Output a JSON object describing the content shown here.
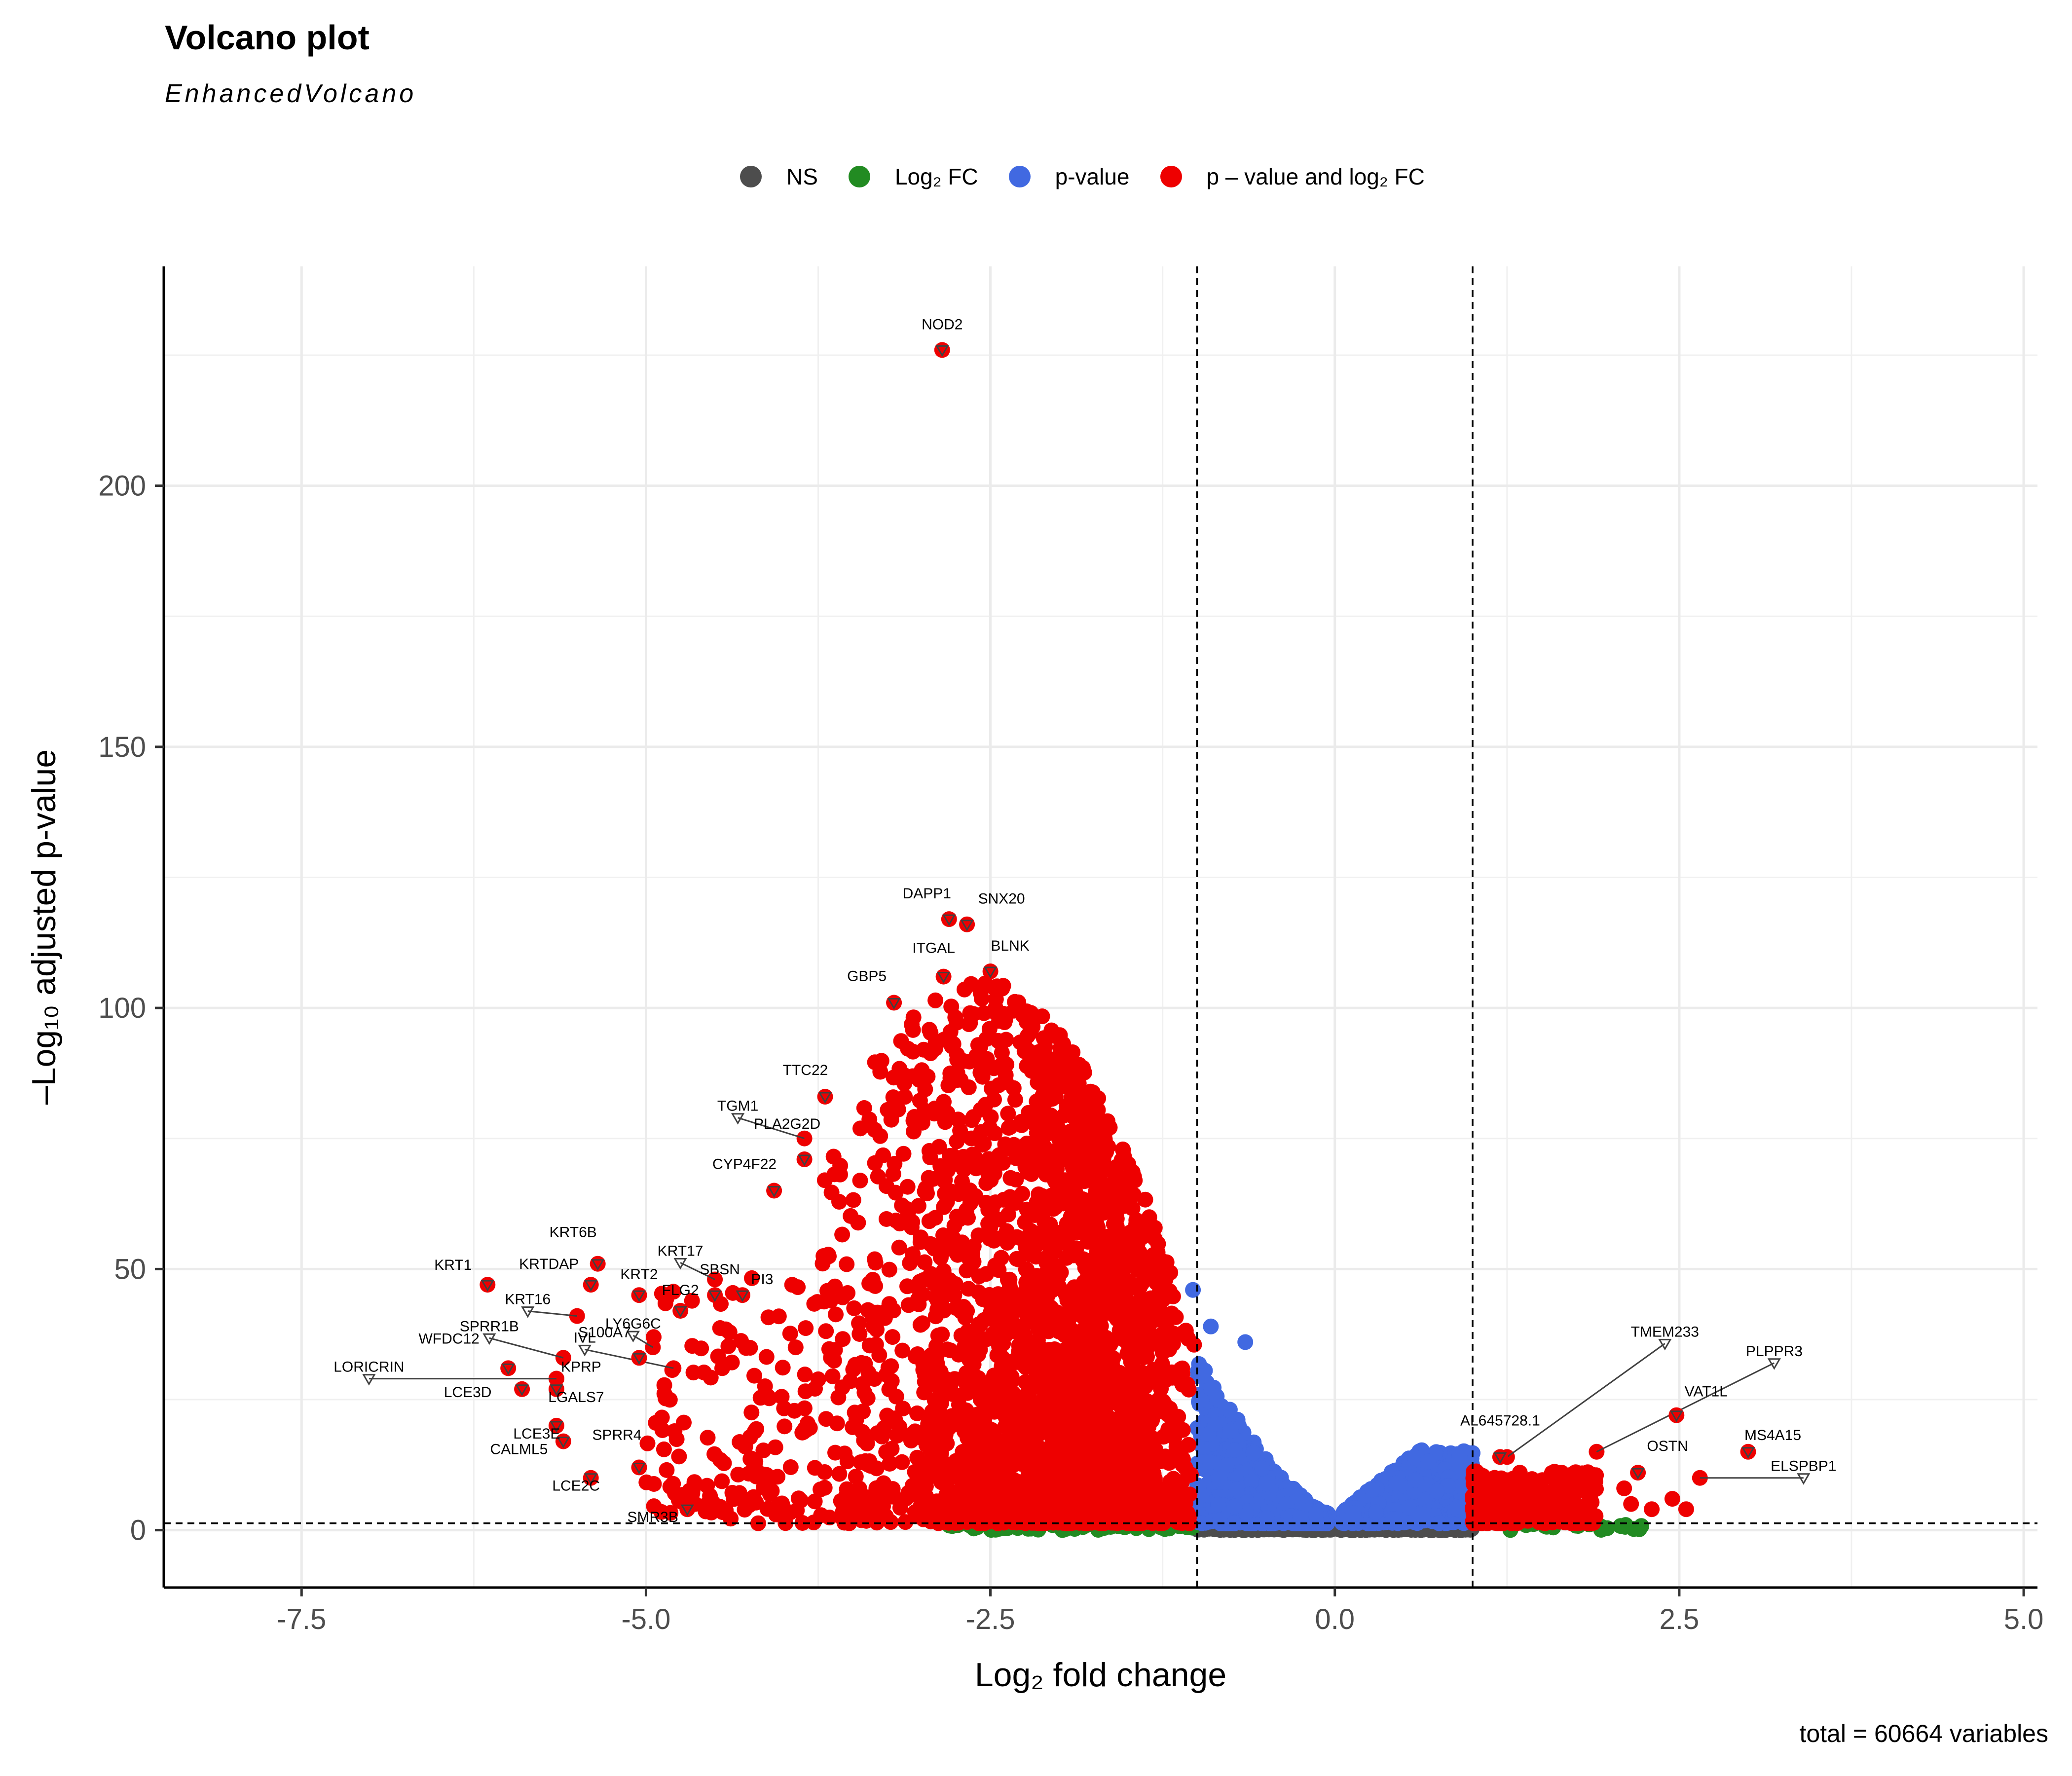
{
  "chart_data": {
    "type": "scatter",
    "title": "Volcano plot",
    "subtitle": "EnhancedVolcano",
    "caption": "total = 60664 variables",
    "xlabel": "Log₂ fold change",
    "ylabel": "–Log₁₀ adjusted p-value",
    "xlim": [
      -8.5,
      5.1
    ],
    "ylim": [
      -11,
      242
    ],
    "xticks": [
      -7.5,
      -5.0,
      -2.5,
      0.0,
      2.5,
      5.0
    ],
    "xtick_labels": [
      "-7.5",
      "-5.0",
      "-2.5",
      "0.0",
      "2.5",
      "5.0"
    ],
    "yticks": [
      0,
      50,
      100,
      150,
      200
    ],
    "ytick_labels": [
      "0",
      "50",
      "100",
      "150",
      "200"
    ],
    "grid": true,
    "legend_position": "top",
    "cutoffs": {
      "log2fc": [
        -1,
        1
      ],
      "neg_log10_p": 1.3
    },
    "legend": [
      {
        "name": "NS",
        "color": "#4d4d4d"
      },
      {
        "name": "Log₂ FC",
        "color": "#228b22"
      },
      {
        "name": "p-value",
        "color": "#4169e1"
      },
      {
        "name": "p – value and log₂ FC",
        "color": "#ee0000"
      }
    ],
    "labeled_points": [
      {
        "label": "NOD2",
        "x": -2.85,
        "y": 226
      },
      {
        "label": "DAPP1",
        "x": -2.8,
        "y": 117
      },
      {
        "label": "SNX20",
        "x": -2.67,
        "y": 116
      },
      {
        "label": "ITGAL",
        "x": -2.84,
        "y": 106
      },
      {
        "label": "BLNK",
        "x": -2.5,
        "y": 107
      },
      {
        "label": "GBP5",
        "x": -3.2,
        "y": 101
      },
      {
        "label": "TTC22",
        "x": -3.7,
        "y": 83
      },
      {
        "label": "TGM1",
        "x": -3.85,
        "y": 75
      },
      {
        "label": "PLA2G2D",
        "x": -3.85,
        "y": 71
      },
      {
        "label": "CYP4F22",
        "x": -4.07,
        "y": 65
      },
      {
        "label": "KRT6B",
        "x": -5.35,
        "y": 51
      },
      {
        "label": "KRT17",
        "x": -4.5,
        "y": 48
      },
      {
        "label": "SBSN",
        "x": -4.5,
        "y": 45
      },
      {
        "label": "PI3",
        "x": -4.3,
        "y": 45
      },
      {
        "label": "KRT1",
        "x": -6.15,
        "y": 47
      },
      {
        "label": "KRTDAP",
        "x": -5.4,
        "y": 47
      },
      {
        "label": "KRT2",
        "x": -5.05,
        "y": 45
      },
      {
        "label": "FLG2",
        "x": -4.75,
        "y": 42
      },
      {
        "label": "KRT16",
        "x": -5.5,
        "y": 41
      },
      {
        "label": "LY6G6C",
        "x": -4.95,
        "y": 35
      },
      {
        "label": "SPRR1B",
        "x": -5.6,
        "y": 33
      },
      {
        "label": "IVL",
        "x": -4.8,
        "y": 31
      },
      {
        "label": "S100A7",
        "x": -5.05,
        "y": 33
      },
      {
        "label": "WFDC12",
        "x": -6.0,
        "y": 31
      },
      {
        "label": "KPRP",
        "x": -5.65,
        "y": 29
      },
      {
        "label": "LORICRIN",
        "x": -5.65,
        "y": 29
      },
      {
        "label": "LCE3D",
        "x": -5.9,
        "y": 27
      },
      {
        "label": "LGALS7",
        "x": -5.65,
        "y": 27
      },
      {
        "label": "CALML5",
        "x": -5.6,
        "y": 17
      },
      {
        "label": "SPRR4",
        "x": -5.05,
        "y": 12
      },
      {
        "label": "LCE3E",
        "x": -5.65,
        "y": 20
      },
      {
        "label": "LCE2C",
        "x": -5.4,
        "y": 10
      },
      {
        "label": "SMR3B",
        "x": -4.7,
        "y": 4
      },
      {
        "label": "TMEM233",
        "x": 1.25,
        "y": 14
      },
      {
        "label": "PLPPR3",
        "x": 1.9,
        "y": 15
      },
      {
        "label": "AL645728.1",
        "x": 1.2,
        "y": 14
      },
      {
        "label": "VAT1L",
        "x": 2.48,
        "y": 22
      },
      {
        "label": "OSTN",
        "x": 2.2,
        "y": 11
      },
      {
        "label": "MS4A15",
        "x": 3.0,
        "y": 15
      },
      {
        "label": "ELSPBP1",
        "x": 2.65,
        "y": 10
      }
    ]
  }
}
